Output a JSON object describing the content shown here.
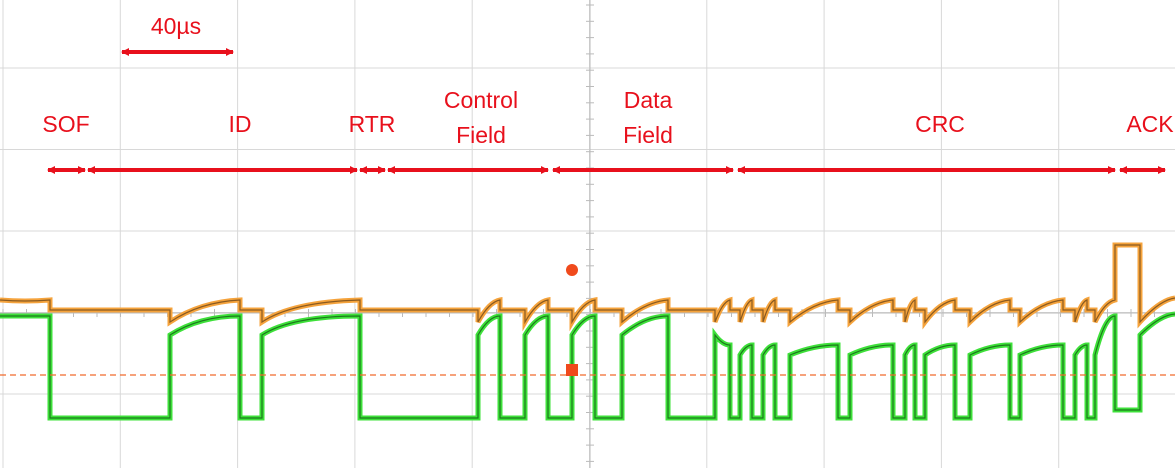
{
  "scale": {
    "label": "40µs"
  },
  "fields": [
    {
      "label": [
        "SOF"
      ]
    },
    {
      "label": [
        "ID"
      ]
    },
    {
      "label": [
        "RTR"
      ]
    },
    {
      "label": [
        "Control",
        "Field"
      ]
    },
    {
      "label": [
        "Data",
        "Field"
      ]
    },
    {
      "label": [
        "CRC"
      ]
    },
    {
      "label": [
        "ACK"
      ]
    }
  ]
}
